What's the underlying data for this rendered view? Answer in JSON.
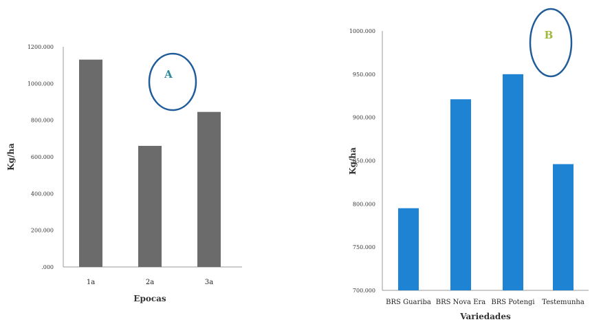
{
  "chart_data": [
    {
      "type": "bar",
      "panel_label": "A",
      "panel_label_color": "#2a8a9a",
      "categories": [
        "1a",
        "2a",
        "3a"
      ],
      "values": [
        1130,
        660,
        845
      ],
      "xlabel": "Epocas",
      "ylabel": "Kg/ha",
      "ylim": [
        0,
        1200
      ],
      "yticks": [
        ".000",
        "200.000",
        "400.000",
        "600.000",
        "800.000",
        "1000.000",
        "1200.000"
      ],
      "bar_color": "#6b6b6b",
      "grid": false,
      "legend": "none"
    },
    {
      "type": "bar",
      "panel_label": "B",
      "panel_label_color": "#a0b83c",
      "categories": [
        "BRS Guariba",
        "BRS Nova Era",
        "BRS Potengi",
        "Testemunha"
      ],
      "values": [
        795,
        921,
        950,
        846
      ],
      "xlabel": "Variedades",
      "ylabel": "Kg/ha",
      "ylim": [
        700,
        1000
      ],
      "yticks": [
        "700.000",
        "750.000",
        "800.000",
        "850.000",
        "900.000",
        "950.000",
        "1000.000"
      ],
      "bar_color": "#1f83d4",
      "grid": false,
      "legend": "none"
    }
  ],
  "annotation_circle_color": "#1f5c99"
}
